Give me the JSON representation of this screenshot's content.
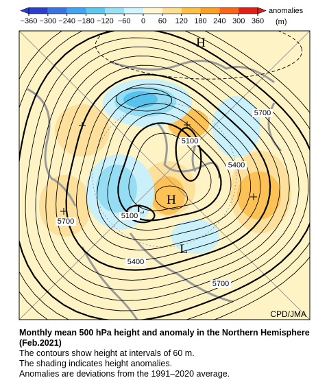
{
  "colorbar": {
    "ticks": [
      {
        "value": -360,
        "label": "−360"
      },
      {
        "value": -300,
        "label": "−300"
      },
      {
        "value": -240,
        "label": "−240"
      },
      {
        "value": -180,
        "label": "−180"
      },
      {
        "value": -120,
        "label": "−120"
      },
      {
        "value": -60,
        "label": "−60"
      },
      0,
      60,
      120,
      180,
      240,
      300,
      360
    ],
    "title": "anomalies",
    "unit": "(m)"
  },
  "map": {
    "labels": [
      "H",
      "H",
      "L",
      "L",
      "5700",
      "5700",
      "5700",
      "5400",
      "5400",
      "5100",
      "5100"
    ],
    "credit": "CPD/JMA"
  },
  "caption": {
    "title": "Monthly mean 500 hPa height and anomaly in the Northern Hemisphere (Feb.2021)",
    "lines": [
      "The contours show height at intervals of 60 m.",
      "The shading indicates height anomalies.",
      "Anomalies are deviations from the 1991–2020 average."
    ]
  }
}
